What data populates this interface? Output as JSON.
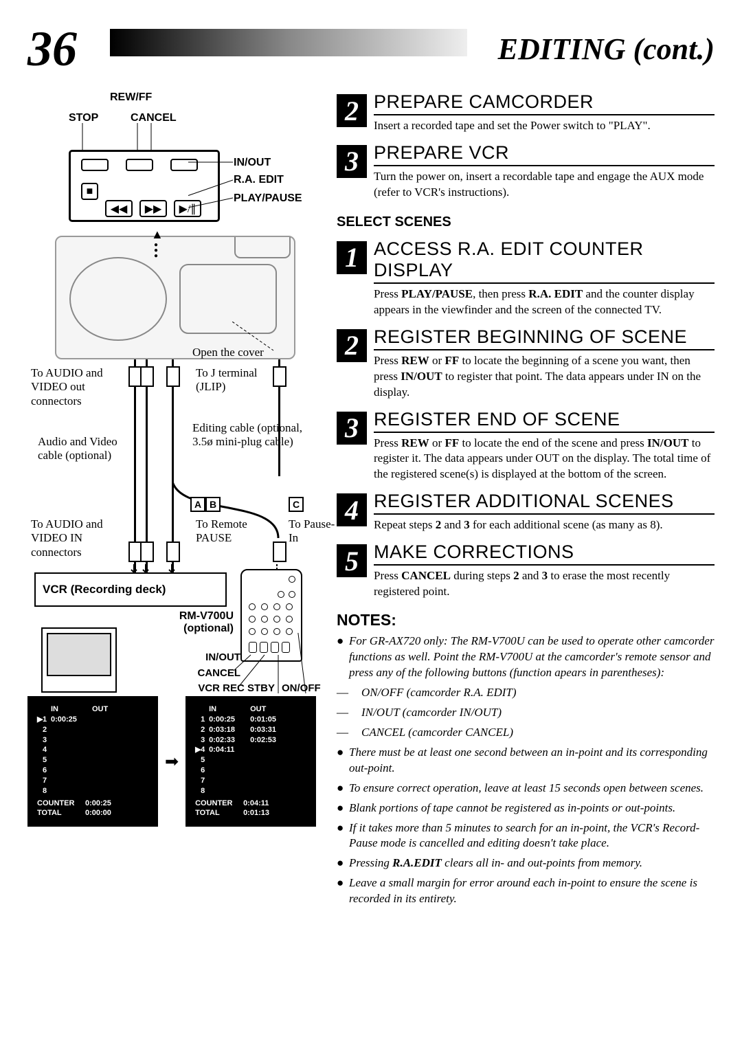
{
  "pageNumber": "36",
  "pageTitle": "EDITING (cont.)",
  "diagram": {
    "rewff": "REW/FF",
    "stop": "STOP",
    "cancel": "CANCEL",
    "inout": "IN/OUT",
    "raedit": "R.A. EDIT",
    "playpause": "PLAY/PAUSE",
    "opencover": "Open the cover",
    "audiovideoout": "To AUDIO and VIDEO out connectors",
    "jterminal": "To J terminal (JLIP)",
    "editingcable": "Editing cable (optional, 3.5ø mini-plug cable)",
    "avcable": "Audio and Video cable (optional)",
    "audiovideoIn": "To AUDIO and VIDEO IN connectors",
    "toremotepause": "To Remote PAUSE",
    "topausein": "To Pause-In",
    "vcr": "VCR (Recording deck)",
    "rmv700u": "RM-V700U (optional)",
    "rInout": "IN/OUT",
    "rCancel": "CANCEL",
    "rVcrRec": "VCR REC STBY",
    "rOnoff": "ON/OFF",
    "boxA": "A",
    "boxB": "B",
    "boxC": "C"
  },
  "steps": {
    "s2a": {
      "num": "2",
      "title": "PREPARE CAMCORDER",
      "body": "Insert a recorded tape and set the Power switch to \"PLAY\"."
    },
    "s3a": {
      "num": "3",
      "title": "PREPARE VCR",
      "body": "Turn the power on, insert a recordable tape and engage the AUX mode (refer to VCR's instructions)."
    },
    "selectScenes": "SELECT SCENES",
    "s1": {
      "num": "1",
      "title": "ACCESS R.A. EDIT COUNTER DISPLAY",
      "body1": "Press ",
      "pp": "PLAY/PAUSE",
      "body2": ", then press ",
      "ra": "R.A. EDIT",
      "body3": " and the counter display appears in the viewfinder and the screen of the connected TV."
    },
    "s2": {
      "num": "2",
      "title": "REGISTER BEGINNING OF SCENE",
      "body1": "Press ",
      "rew": "REW",
      "or": " or ",
      "ff": "FF",
      "body2": " to locate the beginning of a scene you want, then press ",
      "io": "IN/OUT",
      "body3": " to register that point. The data appears under IN on the display."
    },
    "s3": {
      "num": "3",
      "title": "REGISTER END OF SCENE",
      "body1": "Press ",
      "rew": "REW",
      "or": " or ",
      "ff": "FF",
      "body2": " to locate the end of the scene and press ",
      "io": "IN/OUT",
      "body3": " to register it. The data appears under OUT on the display. The total time of the registered scene(s) is displayed at the bottom of the screen."
    },
    "s4": {
      "num": "4",
      "title": "REGISTER ADDITIONAL SCENES",
      "body1": "Repeat steps ",
      "b2": "2",
      "and": " and ",
      "b3": "3",
      "body2": " for each additional scene (as many as 8)."
    },
    "s5": {
      "num": "5",
      "title": "MAKE CORRECTIONS",
      "body1": "Press ",
      "cancel": "CANCEL",
      "body2": " during steps ",
      "b2": "2",
      "and": " and ",
      "b3": "3",
      "body3": " to erase the most recently registered point."
    }
  },
  "notesTitle": "NOTES:",
  "notes": {
    "n1": "For GR-AX720 only: The RM-V700U can be used to operate other camcorder functions as well. Point the RM-V700U at the camcorder's remote sensor and press any of the following buttons (function apears in parentheses):",
    "n1a": "ON/OFF (camcorder R.A. EDIT)",
    "n1b": "IN/OUT (camcorder IN/OUT)",
    "n1c": "CANCEL (camcorder CANCEL)",
    "n2": "There must be at least one second between an in-point and its corresponding out-point.",
    "n3": "To ensure correct operation, leave at least 15 seconds open between scenes.",
    "n4": "Blank portions of tape cannot be registered as in-points or out-points.",
    "n5": "If it takes more than 5 minutes to search for an in-point, the VCR's Record-Pause mode is cancelled and editing doesn't take place.",
    "n6a": "Pressing ",
    "n6b": "R.A.EDIT",
    "n6c": " clears all in- and out-points from memory.",
    "n7": "Leave a small margin for error around each in-point to ensure the scene is recorded in its entirety."
  },
  "counterLeft": {
    "in": "IN",
    "out": "OUT",
    "rows": [
      "1",
      "2",
      "3",
      "4",
      "5",
      "6",
      "7",
      "8"
    ],
    "v1": "0:00:25",
    "counter": "COUNTER",
    "cval": "0:00:25",
    "total": "TOTAL",
    "tval": "0:00:00"
  },
  "counterRight": {
    "in": "IN",
    "out": "OUT",
    "data": [
      [
        "1",
        "0:00:25",
        "0:01:05"
      ],
      [
        "2",
        "0:03:18",
        "0:03:31"
      ],
      [
        "3",
        "0:02:33",
        "0:02:53"
      ],
      [
        "4",
        "0:04:11",
        ""
      ]
    ],
    "rest": [
      "5",
      "6",
      "7",
      "8"
    ],
    "counter": "COUNTER",
    "cval": "0:04:11",
    "total": "TOTAL",
    "tval": "0:01:13"
  }
}
